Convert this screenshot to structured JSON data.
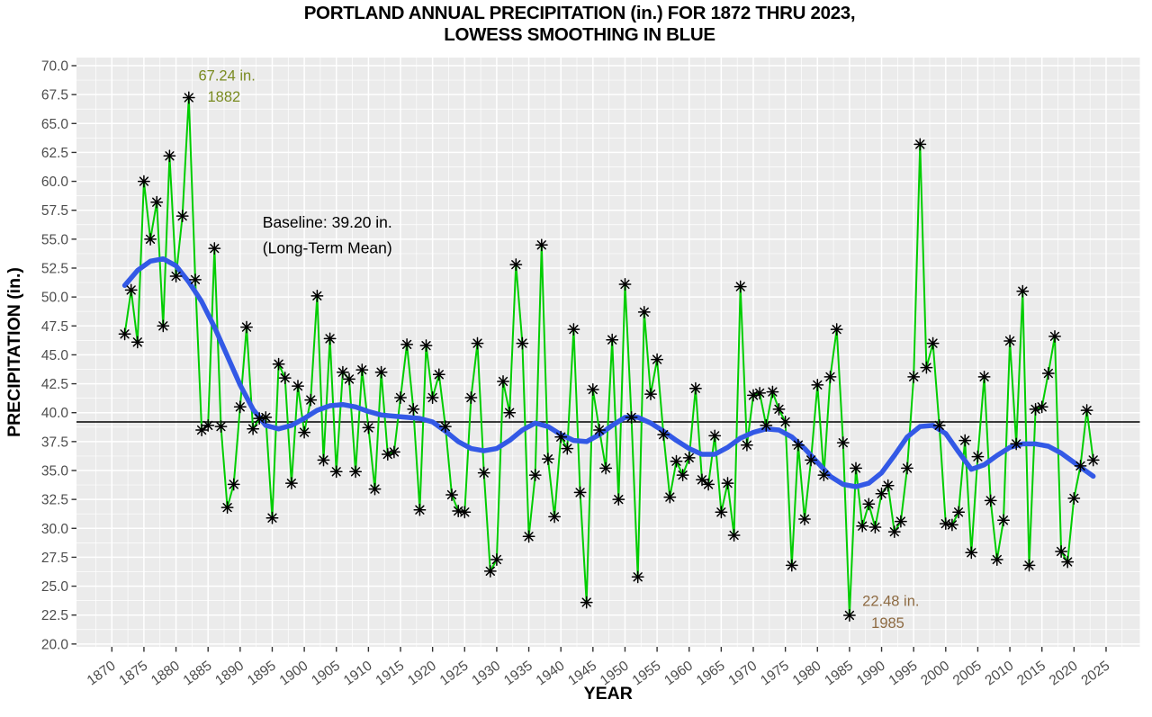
{
  "title": {
    "line1": "PORTLAND ANNUAL PRECIPITATION (in.) FOR 1872 THRU 2023,",
    "line2": "LOWESS SMOOTHING IN BLUE"
  },
  "chart_data": {
    "type": "line",
    "xlabel": "YEAR",
    "ylabel": "PRECIPITATION (in.)",
    "ylim": [
      20.0,
      70.0
    ],
    "y_tick_step": 2.5,
    "x_ticks": [
      1870,
      1875,
      1880,
      1885,
      1890,
      1895,
      1900,
      1905,
      1910,
      1915,
      1920,
      1925,
      1930,
      1935,
      1940,
      1945,
      1950,
      1955,
      1960,
      1965,
      1970,
      1975,
      1980,
      1985,
      1990,
      1995,
      2000,
      2005,
      2010,
      2015,
      2020,
      2025
    ],
    "grid": "on",
    "legend_position": "none",
    "series": [
      {
        "name": "annual-precipitation",
        "marker": "asterisk-8-arm",
        "year_start": 1872,
        "values": [
          46.8,
          50.6,
          46.1,
          60.0,
          55.0,
          58.2,
          47.5,
          62.2,
          51.8,
          57.0,
          67.24,
          51.5,
          38.5,
          38.9,
          54.2,
          38.8,
          31.8,
          33.8,
          40.5,
          47.4,
          38.6,
          39.5,
          39.6,
          30.9,
          44.2,
          43.0,
          33.9,
          42.3,
          38.3,
          41.1,
          50.1,
          35.9,
          46.4,
          34.9,
          43.5,
          42.9,
          34.9,
          43.7,
          38.7,
          33.4,
          43.5,
          36.4,
          36.6,
          41.3,
          45.9,
          40.3,
          31.6,
          45.8,
          41.3,
          43.3,
          38.8,
          32.9,
          31.5,
          31.4,
          41.3,
          46.0,
          34.8,
          26.3,
          27.3,
          42.7,
          40.0,
          52.8,
          46.0,
          29.3,
          34.6,
          54.5,
          36.0,
          31.0,
          37.9,
          36.9,
          47.2,
          33.1,
          23.6,
          42.0,
          38.5,
          35.2,
          46.3,
          32.5,
          51.1,
          39.6,
          25.8,
          48.7,
          41.6,
          44.6,
          38.1,
          32.7,
          35.8,
          34.6,
          36.1,
          42.1,
          34.2,
          33.8,
          38.0,
          31.4,
          33.9,
          29.4,
          50.9,
          37.2,
          41.5,
          41.7,
          38.9,
          41.8,
          40.3,
          39.2,
          26.8,
          37.2,
          30.8,
          35.9,
          42.4,
          34.6,
          43.1,
          47.2,
          37.4,
          22.48,
          35.2,
          30.2,
          32.1,
          30.1,
          33.0,
          33.7,
          29.7,
          30.6,
          35.2,
          43.1,
          63.2,
          43.9,
          46.0,
          38.9,
          30.4,
          30.3,
          31.4,
          37.6,
          27.9,
          36.2,
          43.1,
          32.4,
          27.3,
          30.7,
          46.2,
          37.3,
          50.5,
          26.8,
          40.3,
          40.5,
          43.4,
          46.6,
          28.0,
          27.1,
          32.6,
          35.4,
          40.2,
          35.9
        ]
      },
      {
        "name": "lowess-smoothing",
        "marker": "none",
        "years": [
          1872,
          1874,
          1876,
          1878,
          1880,
          1882,
          1884,
          1886,
          1888,
          1890,
          1892,
          1894,
          1896,
          1898,
          1900,
          1902,
          1904,
          1906,
          1908,
          1910,
          1912,
          1914,
          1916,
          1918,
          1920,
          1922,
          1924,
          1926,
          1928,
          1930,
          1932,
          1934,
          1936,
          1938,
          1940,
          1942,
          1944,
          1946,
          1948,
          1950,
          1952,
          1954,
          1956,
          1958,
          1960,
          1962,
          1964,
          1966,
          1968,
          1970,
          1972,
          1974,
          1976,
          1978,
          1980,
          1982,
          1984,
          1986,
          1988,
          1990,
          1992,
          1994,
          1996,
          1998,
          2000,
          2002,
          2004,
          2006,
          2008,
          2010,
          2012,
          2014,
          2016,
          2018,
          2020,
          2022,
          2023
        ],
        "values": [
          51.0,
          52.3,
          53.1,
          53.3,
          52.7,
          51.3,
          49.6,
          47.4,
          44.9,
          42.4,
          40.3,
          38.9,
          38.6,
          38.9,
          39.5,
          40.2,
          40.6,
          40.7,
          40.5,
          40.1,
          39.8,
          39.7,
          39.6,
          39.5,
          39.2,
          38.4,
          37.5,
          36.9,
          36.7,
          36.9,
          37.6,
          38.5,
          39.1,
          38.8,
          38.1,
          37.6,
          37.5,
          38.1,
          38.9,
          39.6,
          39.6,
          39.1,
          38.4,
          37.6,
          36.9,
          36.4,
          36.4,
          37.0,
          37.8,
          38.3,
          38.6,
          38.5,
          37.9,
          36.9,
          35.7,
          34.5,
          33.8,
          33.6,
          33.9,
          34.8,
          36.3,
          37.9,
          38.8,
          38.9,
          38.2,
          36.6,
          35.1,
          35.5,
          36.3,
          37.0,
          37.3,
          37.3,
          37.1,
          36.5,
          35.7,
          34.9,
          34.5
        ]
      }
    ],
    "baseline": {
      "value": 39.2,
      "label_line1": "Baseline: 39.20 in.",
      "label_line2": "(Long-Term Mean)",
      "label_anchor_year": 1893.5,
      "label_anchor_value1": 56.0,
      "label_anchor_value2": 53.8
    },
    "annotations": [
      {
        "name": "max-annotation",
        "line1": "67.24 in.",
        "line2": "1882",
        "anchor_year": 1883.5,
        "value_line1": 68.7,
        "value_line2": 66.9,
        "color": "#7A8B21"
      },
      {
        "name": "min-annotation",
        "line1": "22.48 in.",
        "line2": "1985",
        "anchor_year": 1987.0,
        "value_line1": 23.3,
        "value_line2": 21.4,
        "color": "#8E6B43"
      }
    ]
  },
  "colors": {
    "data_line": "#00CD00",
    "lowess_line": "#3359E6",
    "baseline_line": "#000000",
    "panel_bg": "#EBEBEB",
    "grid_major": "#FFFFFF",
    "grid_minor": "#F7F7F7",
    "tick_label": "#4D4D4D",
    "tick_mark": "#333333",
    "marker": "#000000",
    "title_text": "#000000"
  }
}
